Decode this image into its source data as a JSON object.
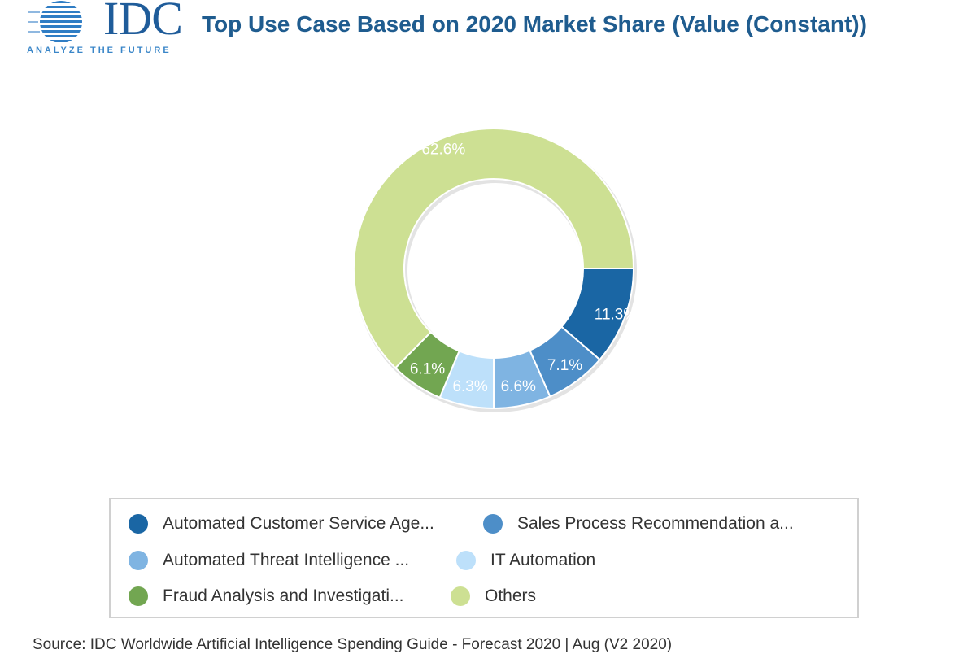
{
  "header": {
    "logo_text": "IDC",
    "logo_tagline": "ANALYZE THE FUTURE",
    "title": "Top Use Case Based on 2020 Market Share (Value (Constant))"
  },
  "chart_data": {
    "type": "pie",
    "donut": true,
    "legend_position": "bottom",
    "slices": [
      {
        "label": "Automated Customer Service Age...",
        "value": 11.3,
        "display": "11.3%",
        "color": "#1a66a4"
      },
      {
        "label": "Sales Process Recommendation a...",
        "value": 7.1,
        "display": "7.1%",
        "color": "#4d8ec8"
      },
      {
        "label": "Automated Threat Intelligence ...",
        "value": 6.6,
        "display": "6.6%",
        "color": "#7fb4e2"
      },
      {
        "label": "IT Automation",
        "value": 6.3,
        "display": "6.3%",
        "color": "#bde0fa"
      },
      {
        "label": "Fraud Analysis and Investigati...",
        "value": 6.1,
        "display": "6.1%",
        "color": "#72a651"
      },
      {
        "label": "Others",
        "value": 62.6,
        "display": "62.6%",
        "color": "#cde093"
      }
    ]
  },
  "footer": {
    "source": "Source: IDC Worldwide Artificial Intelligence Spending Guide - Forecast 2020 | Aug (V2 2020)"
  }
}
